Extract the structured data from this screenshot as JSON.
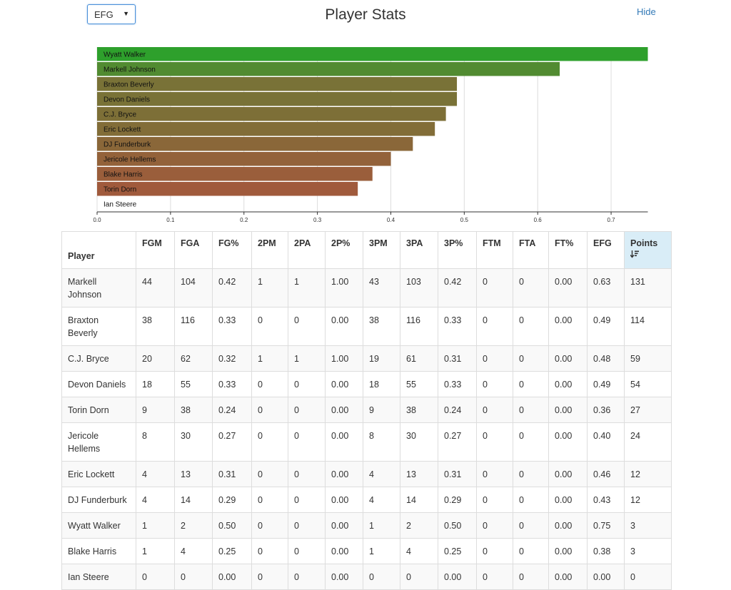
{
  "controls": {
    "stat_select_value": "EFG",
    "hide_label": "Hide"
  },
  "page_title": "Player Stats",
  "chart_data": {
    "type": "bar",
    "orientation": "horizontal",
    "metric": "EFG",
    "categories": [
      "Wyatt Walker",
      "Markell Johnson",
      "Braxton Beverly",
      "Devon Daniels",
      "C.J. Bryce",
      "Eric Lockett",
      "DJ Funderburk",
      "Jericole Hellems",
      "Blake Harris",
      "Torin Dorn",
      "Ian Steere"
    ],
    "values": [
      0.75,
      0.63,
      0.49,
      0.49,
      0.475,
      0.46,
      0.43,
      0.4,
      0.375,
      0.355,
      0.0
    ],
    "xlim": [
      0,
      0.75
    ],
    "xticks": [
      "0.0",
      "0.1",
      "0.2",
      "0.3",
      "0.4",
      "0.5",
      "0.6",
      "0.7"
    ],
    "grid": true,
    "colors": {
      "high": "#2ea02c",
      "low": "#a05a3c"
    }
  },
  "table": {
    "sort_icon": "sort-amount-desc-icon",
    "headers": [
      "Player",
      "FGM",
      "FGA",
      "FG%",
      "2PM",
      "2PA",
      "2P%",
      "3PM",
      "3PA",
      "3P%",
      "FTM",
      "FTA",
      "FT%",
      "EFG",
      "Points"
    ],
    "rows": [
      [
        "Markell Johnson",
        "44",
        "104",
        "0.42",
        "1",
        "1",
        "1.00",
        "43",
        "103",
        "0.42",
        "0",
        "0",
        "0.00",
        "0.63",
        "131"
      ],
      [
        "Braxton Beverly",
        "38",
        "116",
        "0.33",
        "0",
        "0",
        "0.00",
        "38",
        "116",
        "0.33",
        "0",
        "0",
        "0.00",
        "0.49",
        "114"
      ],
      [
        "C.J. Bryce",
        "20",
        "62",
        "0.32",
        "1",
        "1",
        "1.00",
        "19",
        "61",
        "0.31",
        "0",
        "0",
        "0.00",
        "0.48",
        "59"
      ],
      [
        "Devon Daniels",
        "18",
        "55",
        "0.33",
        "0",
        "0",
        "0.00",
        "18",
        "55",
        "0.33",
        "0",
        "0",
        "0.00",
        "0.49",
        "54"
      ],
      [
        "Torin Dorn",
        "9",
        "38",
        "0.24",
        "0",
        "0",
        "0.00",
        "9",
        "38",
        "0.24",
        "0",
        "0",
        "0.00",
        "0.36",
        "27"
      ],
      [
        "Jericole Hellems",
        "8",
        "30",
        "0.27",
        "0",
        "0",
        "0.00",
        "8",
        "30",
        "0.27",
        "0",
        "0",
        "0.00",
        "0.40",
        "24"
      ],
      [
        "Eric Lockett",
        "4",
        "13",
        "0.31",
        "0",
        "0",
        "0.00",
        "4",
        "13",
        "0.31",
        "0",
        "0",
        "0.00",
        "0.46",
        "12"
      ],
      [
        "DJ Funderburk",
        "4",
        "14",
        "0.29",
        "0",
        "0",
        "0.00",
        "4",
        "14",
        "0.29",
        "0",
        "0",
        "0.00",
        "0.43",
        "12"
      ],
      [
        "Wyatt Walker",
        "1",
        "2",
        "0.50",
        "0",
        "0",
        "0.00",
        "1",
        "2",
        "0.50",
        "0",
        "0",
        "0.00",
        "0.75",
        "3"
      ],
      [
        "Blake Harris",
        "1",
        "4",
        "0.25",
        "0",
        "0",
        "0.00",
        "1",
        "4",
        "0.25",
        "0",
        "0",
        "0.00",
        "0.38",
        "3"
      ],
      [
        "Ian Steere",
        "0",
        "0",
        "0.00",
        "0",
        "0",
        "0.00",
        "0",
        "0",
        "0.00",
        "0",
        "0",
        "0.00",
        "0.00",
        "0"
      ]
    ]
  }
}
